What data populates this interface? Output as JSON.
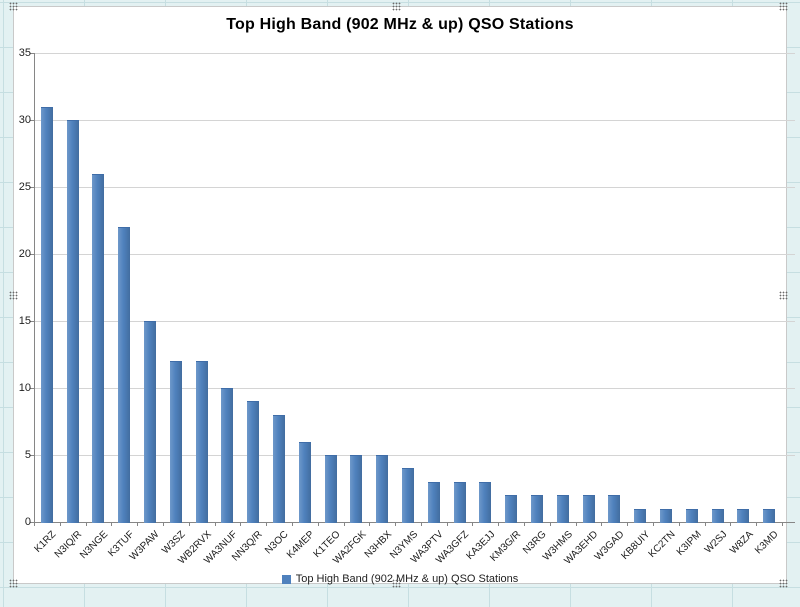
{
  "window": {
    "app_context": "spreadsheet-chart-selection"
  },
  "colors": {
    "bar": "#4f81bd",
    "bar_border": "#3f6da8",
    "plot_gridline": "#d4d4d4",
    "axis": "#868686",
    "sheet_background": "#e3f1f2",
    "sheet_gridline": "#c6dee1",
    "chart_border": "#c9c9c9"
  },
  "chart_data": {
    "type": "bar",
    "title": "Top High Band (902 MHz & up) QSO Stations",
    "categories": [
      "K1RZ",
      "N3IQ/R",
      "N3NGE",
      "K3TUF",
      "W3PAW",
      "W3SZ",
      "WB2RVX",
      "WA3NUF",
      "NN3Q/R",
      "N3OC",
      "K4MEP",
      "K1TEO",
      "WA2FGK",
      "N3HBX",
      "N3YMS",
      "WA3PTV",
      "WA3GFZ",
      "KA3EJJ",
      "KM3G/R",
      "N3RG",
      "W3HMS",
      "WA3EHD",
      "W3GAD",
      "KB8UIY",
      "KC2TN",
      "K3IPM",
      "W2SJ",
      "W8ZA",
      "K3MD"
    ],
    "values": [
      31,
      30,
      26,
      22,
      15,
      12,
      12,
      10,
      9,
      8,
      6,
      5,
      5,
      5,
      4,
      3,
      3,
      3,
      2,
      2,
      2,
      2,
      2,
      1,
      1,
      1,
      1,
      1,
      1
    ],
    "xlabel": "",
    "ylabel": "",
    "ylim": [
      0,
      35
    ],
    "yticks": [
      0,
      5,
      10,
      15,
      20,
      25,
      30,
      35
    ],
    "grid": true,
    "x_label_rotation_deg": 45,
    "legend": {
      "label": "Top High Band (902 MHz & up) QSO Stations",
      "position": "bottom"
    }
  }
}
